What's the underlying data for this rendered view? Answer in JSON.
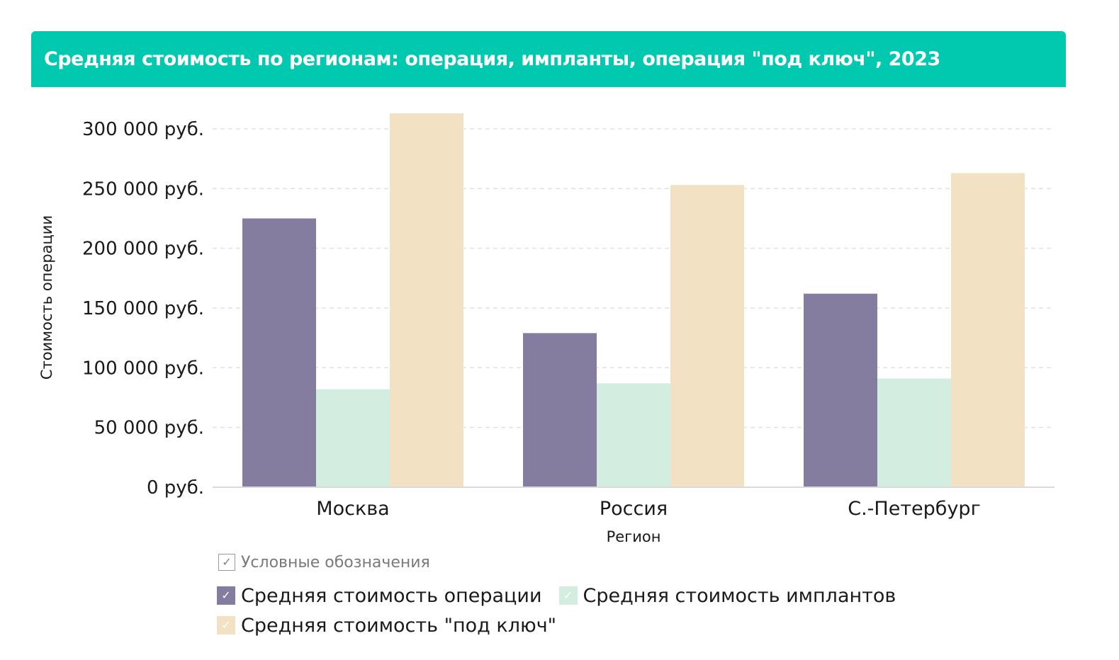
{
  "header": {
    "title": "Средняя стоимость по регионам: операция, импланты, операция \"под ключ\", 2023"
  },
  "chart_data": {
    "type": "bar",
    "categories": [
      "Москва",
      "Россия",
      "С.-Петербург"
    ],
    "series": [
      {
        "name": "Средняя стоимость операции",
        "color": "#847d9f",
        "values": [
          225000,
          129000,
          162000
        ]
      },
      {
        "name": "Средняя стоимость имплантов",
        "color": "#d3ede0",
        "values": [
          82000,
          87000,
          91000
        ]
      },
      {
        "name": "Средняя стоимость \"под ключ\"",
        "color": "#f3e1c3",
        "values": [
          313000,
          253000,
          263000
        ]
      }
    ],
    "y_ticks": [
      0,
      50000,
      100000,
      150000,
      200000,
      250000,
      300000
    ],
    "y_tick_labels": [
      "0 руб.",
      "50 000 руб.",
      "100 000 руб.",
      "150 000 руб.",
      "200 000 руб.",
      "250 000 руб.",
      "300 000 руб."
    ],
    "ylim": [
      0,
      313000
    ],
    "xlabel": "Регион",
    "ylabel": "Стоимость операции",
    "grid": "horizontal-dashed",
    "legend_position": "bottom"
  },
  "legend": {
    "title": "Условные обозначения",
    "check_glyph": "✓"
  }
}
